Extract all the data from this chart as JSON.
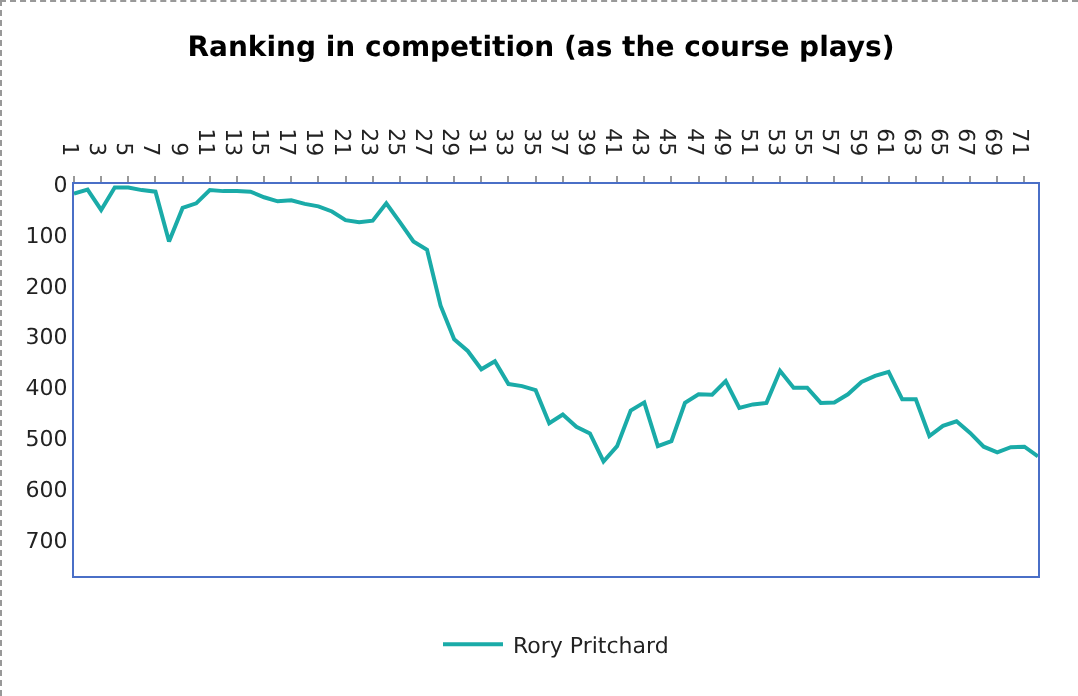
{
  "chart_data": {
    "type": "line",
    "title": "Ranking in competition (as the course plays)",
    "categories": [
      "1",
      null,
      "3",
      null,
      "5",
      null,
      "7",
      null,
      "9",
      null,
      "11",
      null,
      "13",
      null,
      "15",
      null,
      "17",
      null,
      "19",
      null,
      "21",
      null,
      "23",
      null,
      "25",
      null,
      "27",
      null,
      "29",
      null,
      "31",
      null,
      "33",
      null,
      "35",
      null,
      "37",
      null,
      "39",
      null,
      "41",
      null,
      "43",
      null,
      "45",
      null,
      "47",
      null,
      "49",
      null,
      "51",
      null,
      "53",
      null,
      "55",
      null,
      "57",
      null,
      "59",
      null,
      "61",
      null,
      "63",
      null,
      "65",
      null,
      "67",
      null,
      "69",
      null,
      "71",
      null
    ],
    "series": [
      {
        "name": "Rory Pritchard",
        "color": "#1aaba8",
        "values": [
          19,
          11,
          51,
          7,
          7,
          12,
          15,
          113,
          47,
          38,
          12,
          14,
          14,
          15,
          26,
          34,
          32,
          39,
          44,
          54,
          71,
          75,
          72,
          38,
          75,
          113,
          129,
          239,
          305,
          328,
          364,
          348,
          393,
          397,
          405,
          470,
          453,
          477,
          490,
          545,
          515,
          445,
          429,
          515,
          505,
          430,
          413,
          414,
          387,
          440,
          433,
          430,
          367,
          400,
          400,
          430,
          429,
          413,
          389,
          377,
          369,
          423,
          423,
          495,
          475,
          466,
          489,
          516,
          527,
          517,
          516,
          535
        ]
      }
    ],
    "ylim": [
      770,
      0
    ],
    "yticks": [
      0,
      100,
      200,
      300,
      400,
      500,
      600,
      700
    ],
    "grid": false,
    "legend": "bottom",
    "marker": "none",
    "line_style": "solid"
  }
}
